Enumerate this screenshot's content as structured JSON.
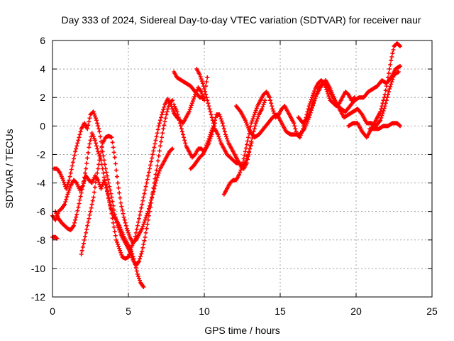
{
  "chart_data": {
    "type": "scatter",
    "title": "Day 333 of 2024, Sidereal Day-to-day VTEC variation (SDTVAR) for receiver naur",
    "xlabel": "GPS time / hours",
    "ylabel": "SDTVAR / TECUs",
    "xlim": [
      0,
      25
    ],
    "ylim": [
      -12,
      6
    ],
    "xticks": [
      0,
      5,
      10,
      15,
      20,
      25
    ],
    "yticks": [
      -12,
      -10,
      -8,
      -6,
      -4,
      -2,
      0,
      2,
      4,
      6
    ],
    "grid": true,
    "marker": "+",
    "color": "#ff0000",
    "series": [
      {
        "x": [
          0.0,
          0.2,
          0.4,
          0.6,
          0.8,
          1.0,
          1.2,
          1.4,
          1.6,
          1.8,
          2.0,
          2.2,
          2.4,
          2.6,
          2.8,
          3.0,
          3.2,
          3.4,
          3.6,
          3.8,
          4.0,
          4.2,
          4.4,
          4.6,
          4.8,
          5.0,
          5.2,
          5.4,
          5.6,
          5.8,
          6.0,
          6.2,
          6.4,
          6.6,
          6.8,
          7.0,
          7.2,
          7.4,
          7.6,
          7.8,
          8.0,
          8.2,
          8.4,
          8.6,
          8.8,
          9.0,
          9.2,
          9.4,
          9.6,
          9.8,
          10.0
        ],
        "y": [
          -6.3,
          -6.6,
          -6.0,
          -5.8,
          -5.5,
          -4.8,
          -4.2,
          -3.8,
          -4.0,
          -4.5,
          -4.2,
          -3.5,
          -3.8,
          -4.0,
          -3.5,
          -3.8,
          -4.4,
          -3.8,
          -4.5,
          -5.5,
          -6.8,
          -8.0,
          -8.6,
          -9.2,
          -9.3,
          -9.2,
          -8.5,
          -8.0,
          -7.0,
          -6.0,
          -5.0,
          -4.0,
          -3.0,
          -2.0,
          -1.0,
          0.0,
          0.8,
          1.5,
          1.9,
          1.5,
          0.9,
          0.6,
          0.4,
          0.2,
          0.6,
          1.0,
          1.6,
          2.2,
          2.7,
          2.4,
          1.8
        ]
      },
      {
        "x": [
          0.1,
          0.3,
          0.5,
          0.7,
          0.9,
          1.1,
          1.3,
          1.5,
          1.7,
          1.9,
          2.1,
          2.3,
          2.5,
          2.7,
          2.9,
          3.1,
          3.3,
          3.5,
          3.7,
          3.9,
          4.1,
          4.3,
          4.5,
          4.7,
          4.9,
          5.1,
          5.3,
          5.5,
          5.7,
          5.9,
          6.1,
          6.3,
          6.5,
          6.7,
          6.9,
          7.1,
          7.3,
          7.5,
          7.7,
          7.9
        ],
        "y": [
          -3.0,
          -3.0,
          -3.3,
          -3.8,
          -4.4,
          -3.8,
          -2.8,
          -1.8,
          -1.0,
          -0.2,
          0.2,
          -0.2,
          0.8,
          1.0,
          0.4,
          -0.4,
          -1.8,
          -3.0,
          -4.0,
          -5.0,
          -6.2,
          -7.0,
          -7.6,
          -8.0,
          -8.4,
          -8.8,
          -9.4,
          -9.8,
          -9.5,
          -8.8,
          -7.8,
          -6.6,
          -5.4,
          -4.0,
          -2.8,
          -1.4,
          -0.2,
          0.8,
          1.6,
          1.8
        ]
      },
      {
        "x": [
          0.2,
          0.4,
          0.6,
          0.8,
          1.0,
          1.2,
          1.4,
          1.6,
          1.8,
          2.0,
          2.2,
          2.4,
          2.6,
          2.8,
          3.0,
          3.2,
          3.4,
          3.6,
          3.8,
          4.0,
          4.2,
          4.4,
          4.6,
          4.8,
          5.0,
          5.2,
          5.4,
          5.6,
          5.8,
          6.0
        ],
        "y": [
          -6.0,
          -6.5,
          -6.8,
          -7.0,
          -7.2,
          -7.3,
          -7.0,
          -6.2,
          -5.2,
          -4.2,
          -3.0,
          -1.5,
          -0.5,
          -1.0,
          -1.8,
          -2.4,
          -3.6,
          -4.6,
          -5.6,
          -6.2,
          -6.6,
          -7.0,
          -7.5,
          -8.0,
          -8.4,
          -8.8,
          -9.5,
          -10.4,
          -11.0,
          -11.3
        ]
      },
      {
        "x": [
          0.0,
          0.2,
          0.3
        ],
        "y": [
          -7.8,
          -7.8,
          -7.9
        ]
      },
      {
        "x": [
          1.9,
          2.1,
          2.3,
          2.5,
          2.7,
          2.9,
          3.1,
          3.3,
          3.5,
          3.7,
          3.9,
          4.1,
          4.3,
          4.5,
          4.7,
          4.9,
          5.1,
          5.3,
          5.5,
          5.7,
          5.9,
          6.1,
          6.3,
          6.5,
          6.7,
          6.9,
          7.1,
          7.3,
          7.5,
          7.7,
          7.9
        ],
        "y": [
          -9.0,
          -8.0,
          -7.0,
          -6.0,
          -5.0,
          -3.6,
          -2.4,
          -1.2,
          -0.8,
          -0.7,
          -0.8,
          -2.2,
          -4.0,
          -5.4,
          -6.4,
          -7.2,
          -7.8,
          -8.2,
          -8.0,
          -7.6,
          -7.2,
          -6.6,
          -6.0,
          -5.2,
          -4.4,
          -3.6,
          -3.0,
          -2.6,
          -2.2,
          -1.8,
          -1.6
        ]
      },
      {
        "x": [
          8.0,
          8.2,
          8.4,
          8.6,
          8.8,
          9.0,
          9.2,
          9.4,
          9.6,
          9.8,
          10.0,
          10.2,
          10.4,
          10.6,
          10.8,
          11.0,
          11.2,
          11.4,
          11.6,
          11.8,
          12.0,
          12.2,
          12.4,
          12.6,
          12.8,
          13.0,
          13.2,
          13.4,
          13.6,
          13.8,
          14.0
        ],
        "y": [
          1.5,
          1.0,
          0.2,
          -0.6,
          -1.4,
          -1.8,
          -2.2,
          -2.0,
          -1.6,
          -1.6,
          -1.8,
          -1.2,
          -0.6,
          0.0,
          0.8,
          0.8,
          0.2,
          -0.6,
          -1.2,
          -1.6,
          -2.0,
          -2.4,
          -2.8,
          -3.0,
          -2.6,
          -1.6,
          -0.6,
          0.2,
          0.8,
          1.2,
          1.8
        ]
      },
      {
        "x": [
          9.5,
          9.7,
          9.9,
          10.1,
          10.3,
          10.5,
          10.7,
          10.9,
          11.1,
          11.3,
          11.5,
          11.7,
          11.9,
          12.1,
          12.3,
          12.5,
          12.7,
          12.9,
          13.1
        ],
        "y": [
          4.0,
          3.6,
          3.0,
          2.2,
          1.4,
          0.6,
          -0.2,
          -0.6,
          -1.2,
          -1.6,
          -2.0,
          -2.2,
          -2.4,
          -2.6,
          -2.6,
          -2.8,
          -2.6,
          -2.0,
          -1.2
        ]
      },
      {
        "x": [
          8.0,
          8.2,
          8.5,
          8.8,
          9.1,
          9.4,
          9.7,
          10.0,
          10.1,
          10.2
        ],
        "y": [
          3.8,
          3.4,
          3.2,
          3.0,
          2.8,
          2.4,
          2.0,
          2.0,
          2.8,
          3.4
        ]
      },
      {
        "x": [
          9.1,
          9.3,
          9.5,
          9.7,
          9.9,
          10.1,
          10.3,
          10.5,
          10.7
        ],
        "y": [
          -3.0,
          -2.8,
          -2.5,
          -2.2,
          -2.0,
          -1.6,
          -1.2,
          -0.6,
          0.2
        ]
      },
      {
        "x": [
          11.3,
          11.5,
          11.7,
          11.9,
          12.1,
          12.3,
          12.5,
          12.7,
          12.9,
          13.1,
          13.3,
          13.5,
          13.7,
          13.9,
          14.1,
          14.3,
          14.5,
          14.7,
          14.9,
          15.1,
          15.3,
          15.5,
          15.7,
          15.9,
          16.1,
          16.3,
          16.5,
          16.7,
          16.9,
          17.1,
          17.3,
          17.5,
          17.7,
          17.9,
          18.1,
          18.3,
          18.5,
          18.7,
          18.9,
          19.1,
          19.3,
          19.5,
          19.7,
          19.9
        ],
        "y": [
          -4.8,
          -4.4,
          -4.0,
          -3.8,
          -3.8,
          -3.4,
          -2.8,
          -1.8,
          -0.8,
          0.2,
          0.8,
          1.4,
          1.8,
          2.2,
          2.4,
          2.0,
          1.2,
          0.6,
          0.8,
          1.2,
          1.4,
          1.0,
          0.6,
          0.2,
          -0.6,
          -0.8,
          -0.2,
          0.6,
          1.4,
          2.0,
          2.6,
          3.0,
          3.2,
          3.0,
          2.4,
          1.8,
          1.6,
          1.4,
          1.6,
          2.0,
          2.4,
          2.2,
          1.8,
          2.0
        ]
      },
      {
        "x": [
          12.1,
          12.4,
          12.7,
          13.0,
          13.3,
          13.6,
          13.9,
          14.2,
          14.5,
          14.8,
          15.1,
          15.4,
          15.7,
          16.0,
          16.3,
          16.6,
          16.9,
          17.2,
          17.5,
          17.8,
          18.1,
          18.4,
          18.7,
          19.0,
          19.3,
          19.6,
          19.9,
          20.2,
          20.5,
          20.8,
          21.1,
          21.4,
          21.7,
          22.0,
          22.3,
          22.6,
          22.9
        ],
        "y": [
          1.4,
          1.0,
          0.4,
          -0.4,
          -0.8,
          -0.6,
          -0.2,
          0.2,
          0.6,
          0.8,
          0.2,
          -0.4,
          -0.6,
          -0.6,
          -0.6,
          -0.2,
          0.6,
          1.6,
          2.6,
          3.0,
          2.8,
          2.2,
          1.6,
          1.2,
          1.0,
          1.4,
          1.8,
          2.0,
          2.0,
          2.4,
          2.6,
          2.8,
          3.2,
          3.0,
          3.4,
          4.0,
          4.2
        ]
      },
      {
        "x": [
          16.2,
          16.5,
          16.8,
          17.1,
          17.4,
          17.7,
          18.0,
          18.3,
          18.6,
          18.9,
          19.2,
          19.5,
          19.8,
          20.1,
          20.4,
          20.7,
          21.0,
          21.3,
          21.6,
          21.9,
          22.2,
          22.5,
          22.8
        ],
        "y": [
          0.6,
          0.2,
          0.6,
          1.4,
          2.2,
          2.8,
          3.2,
          2.6,
          1.8,
          1.2,
          0.6,
          0.8,
          1.0,
          1.2,
          0.8,
          0.2,
          0.2,
          0.0,
          0.4,
          1.4,
          2.6,
          3.6,
          3.8
        ]
      },
      {
        "x": [
          19.5,
          19.8,
          20.1,
          20.4,
          20.7,
          21.0,
          21.3,
          21.6,
          21.9,
          22.1,
          22.3,
          22.5,
          22.7,
          22.9
        ],
        "y": [
          0.0,
          0.2,
          0.2,
          -0.4,
          -0.8,
          -0.2,
          0.4,
          1.0,
          2.2,
          3.4,
          4.6,
          5.6,
          5.8,
          5.6
        ]
      },
      {
        "x": [
          20.9,
          21.2,
          21.5,
          21.8,
          22.1,
          22.4,
          22.7,
          22.9
        ],
        "y": [
          -0.2,
          -0.2,
          -0.2,
          0.0,
          0.0,
          0.2,
          0.2,
          0.0
        ]
      }
    ]
  }
}
